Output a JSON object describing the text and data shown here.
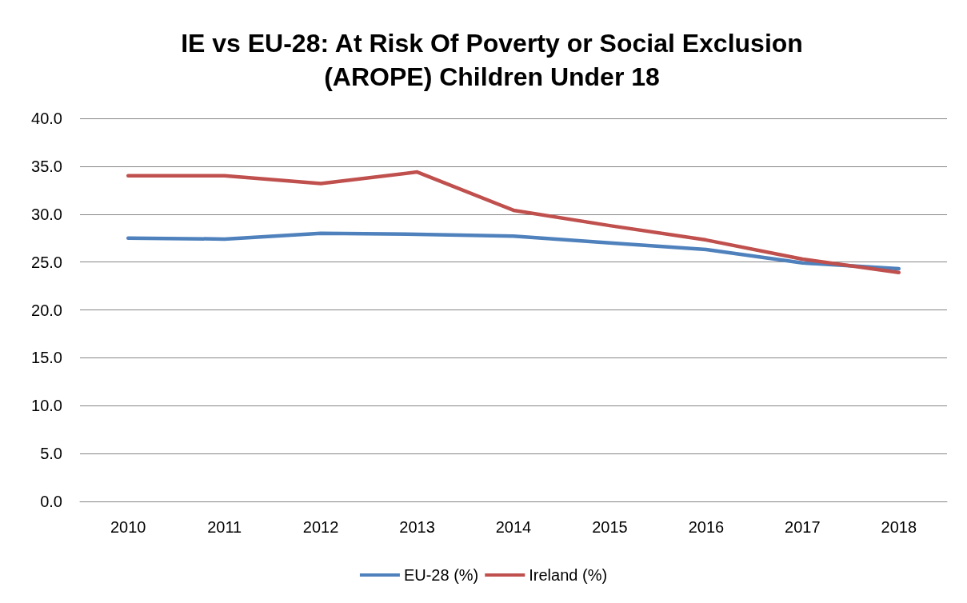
{
  "chart_data": {
    "type": "line",
    "title": "IE vs EU-28: At Risk Of Poverty or Social Exclusion\n(AROPE) Children Under 18",
    "categories": [
      "2010",
      "2011",
      "2012",
      "2013",
      "2014",
      "2015",
      "2016",
      "2017",
      "2018"
    ],
    "series": [
      {
        "name": "EU-28 (%)",
        "color": "#4f81bd",
        "values": [
          27.5,
          27.4,
          28.0,
          27.9,
          27.7,
          27.0,
          26.3,
          24.9,
          24.3
        ]
      },
      {
        "name": "Ireland (%)",
        "color": "#c0504d",
        "values": [
          34.0,
          34.0,
          33.2,
          34.4,
          30.4,
          28.8,
          27.3,
          25.3,
          23.9
        ]
      }
    ],
    "ylim": [
      0,
      40
    ],
    "yticks": [
      {
        "value": 0,
        "label": "0.0"
      },
      {
        "value": 5,
        "label": "5.0"
      },
      {
        "value": 10,
        "label": "10.0"
      },
      {
        "value": 15,
        "label": "15.0"
      },
      {
        "value": 20,
        "label": "20.0"
      },
      {
        "value": 25,
        "label": "25.0"
      },
      {
        "value": 30,
        "label": "30.0"
      },
      {
        "value": 35,
        "label": "35.0"
      },
      {
        "value": 40,
        "label": "40.0"
      }
    ],
    "grid": "y",
    "legend": "bottom",
    "marker": "none",
    "line_style": "solid"
  }
}
